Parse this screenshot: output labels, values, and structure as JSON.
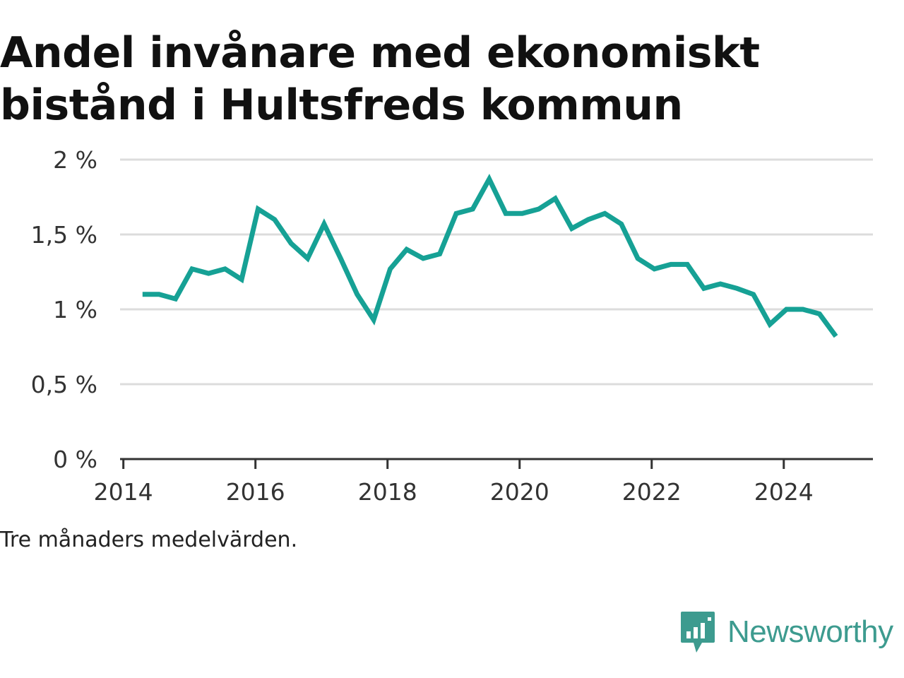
{
  "title": "Andel invånare med ekonomiskt bistånd i Hultsfreds kommun",
  "note": "Tre månaders medelvärden.",
  "brand": {
    "name": "Newsworthy",
    "icon": "newsworthy-logo-icon",
    "color": "#3d9b8f"
  },
  "chart_data": {
    "type": "line",
    "title": "Andel invånare med ekonomiskt bistånd i Hultsfreds kommun",
    "xlabel": "",
    "ylabel": "",
    "xlim": [
      2013.95,
      2025.35
    ],
    "ylim": [
      0,
      2
    ],
    "y_ticks": [
      0,
      0.5,
      1,
      1.5,
      2
    ],
    "y_tick_labels": [
      "0 %",
      "0,5 %",
      "1 %",
      "1,5 %",
      "2 %"
    ],
    "x_ticks": [
      2014,
      2016,
      2018,
      2020,
      2022,
      2024
    ],
    "x_tick_labels": [
      "2014",
      "2016",
      "2018",
      "2020",
      "2022",
      "2024"
    ],
    "grid": true,
    "line_color": "#16a195",
    "series": [
      {
        "name": "",
        "x": [
          2014.29,
          2014.54,
          2014.79,
          2015.04,
          2015.29,
          2015.54,
          2015.79,
          2016.04,
          2016.29,
          2016.54,
          2016.79,
          2017.04,
          2017.29,
          2017.54,
          2017.79,
          2018.04,
          2018.29,
          2018.54,
          2018.79,
          2019.04,
          2019.29,
          2019.54,
          2019.79,
          2020.04,
          2020.29,
          2020.54,
          2020.79,
          2021.04,
          2021.29,
          2021.54,
          2021.79,
          2022.04,
          2022.29,
          2022.54,
          2022.79,
          2023.04,
          2023.29,
          2023.54,
          2023.79,
          2024.04,
          2024.29,
          2024.54,
          2024.79
        ],
        "values": [
          1.1,
          1.1,
          1.07,
          1.27,
          1.24,
          1.27,
          1.2,
          1.67,
          1.6,
          1.44,
          1.34,
          1.57,
          1.34,
          1.1,
          0.93,
          1.27,
          1.4,
          1.34,
          1.37,
          1.64,
          1.67,
          1.87,
          1.64,
          1.64,
          1.67,
          1.74,
          1.54,
          1.6,
          1.64,
          1.57,
          1.34,
          1.27,
          1.3,
          1.3,
          1.14,
          1.17,
          1.14,
          1.1,
          0.9,
          1.0,
          1.0,
          0.97,
          0.82
        ]
      }
    ]
  }
}
